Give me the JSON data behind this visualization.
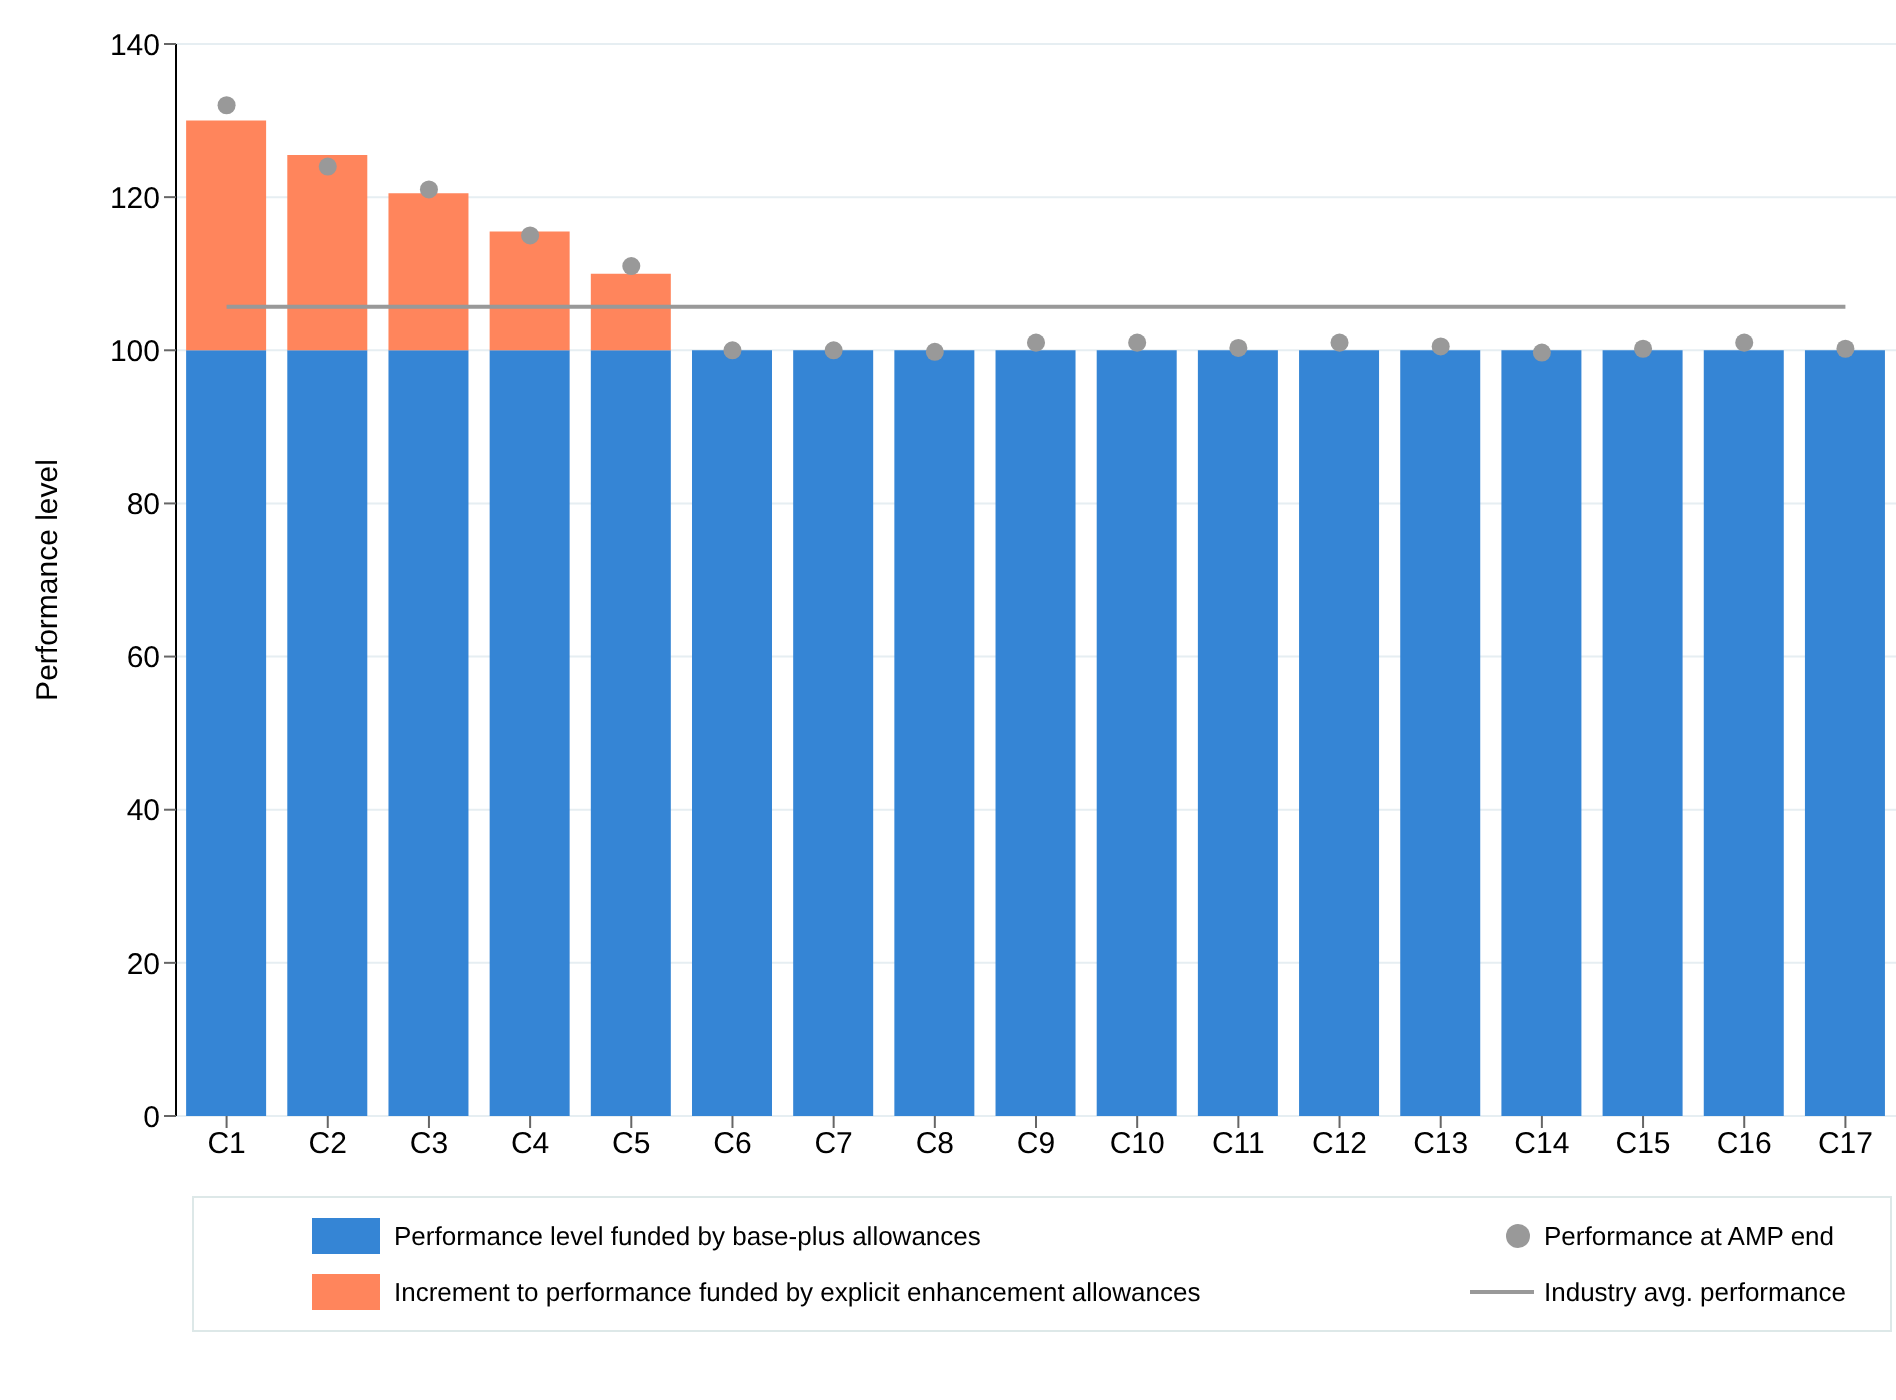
{
  "chart_data": {
    "type": "bar",
    "stacked": true,
    "ylabel": "Performance level",
    "categories": [
      "C1",
      "C2",
      "C3",
      "C4",
      "C5",
      "C6",
      "C7",
      "C8",
      "C9",
      "C10",
      "C11",
      "C12",
      "C13",
      "C14",
      "C15",
      "C16",
      "C17"
    ],
    "series": [
      {
        "name": "Performance level funded by base-plus allowances",
        "color": "#3585d5",
        "values": [
          100,
          100,
          100,
          100,
          100,
          100,
          100,
          100,
          100,
          100,
          100,
          100,
          100,
          100,
          100,
          100,
          100
        ]
      },
      {
        "name": "Increment to performance funded by explicit enhancement allowances",
        "color": "#ff855c",
        "values": [
          30,
          25.5,
          20.5,
          15.5,
          10,
          null,
          null,
          null,
          null,
          null,
          null,
          null,
          null,
          null,
          null,
          null,
          null
        ]
      },
      {
        "name": "Performance at AMP end",
        "type": "scatter",
        "marker": "circle",
        "color": "#999999",
        "values": [
          132,
          124,
          121,
          115,
          111,
          100,
          100,
          99.8,
          101,
          101,
          100.3,
          101,
          100.5,
          99.7,
          100.2,
          101,
          100.2
        ]
      }
    ],
    "ref_lines": [
      {
        "axis": "y",
        "value": 105.7,
        "label": "Industry avg. performance",
        "color": "#999999",
        "line_style": "solid"
      }
    ],
    "ylim": [
      0,
      140
    ],
    "yticks": [
      0,
      20,
      40,
      60,
      80,
      100,
      120,
      140
    ],
    "grid": "y",
    "legend": "bottom"
  }
}
